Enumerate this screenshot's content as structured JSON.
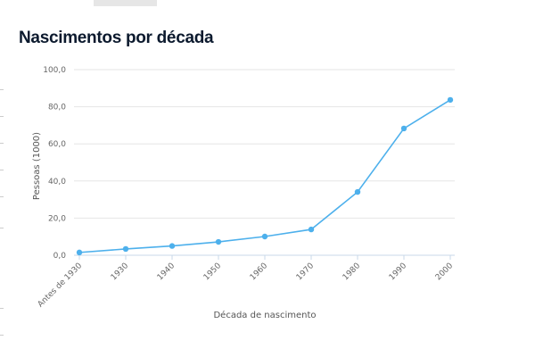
{
  "title": "Nascimentos por década",
  "chart_data": {
    "type": "line",
    "title": "Nascimentos por década",
    "xlabel": "Década de nascimento",
    "ylabel": "Pessoas (1000)",
    "categories": [
      "Antes de 1930",
      "1930",
      "1940",
      "1950",
      "1960",
      "1970",
      "1980",
      "1990",
      "2000"
    ],
    "values": [
      1.5,
      3.4,
      5.0,
      7.2,
      10.1,
      13.9,
      34.1,
      68.3,
      83.7
    ],
    "ylim": [
      0,
      100
    ],
    "yticks": [
      "0,0",
      "20,0",
      "40,0",
      "60,0",
      "80,0",
      "100,0"
    ],
    "grid": true,
    "legend": "none",
    "color": "#4db0ec"
  }
}
